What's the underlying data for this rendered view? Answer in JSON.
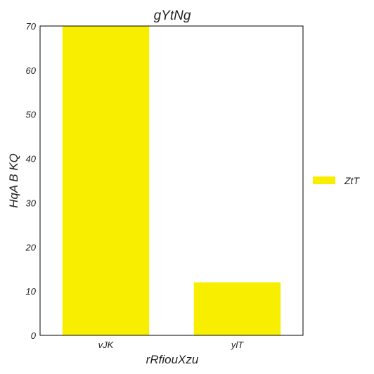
{
  "chart_data": {
    "type": "bar",
    "title": "gYtNg",
    "xlabel": "rRfiouXzu",
    "ylabel": "HqA  B KQ",
    "categories": [
      "vJK",
      "ylT"
    ],
    "series": [
      {
        "name": "ZtT",
        "values": [
          70,
          12
        ]
      }
    ],
    "ylim": [
      0,
      70
    ],
    "yticks": [
      0,
      10,
      20,
      30,
      40,
      50,
      60,
      70
    ],
    "grid": false,
    "legend_position": "right",
    "bar_color": "#f8ef00"
  }
}
